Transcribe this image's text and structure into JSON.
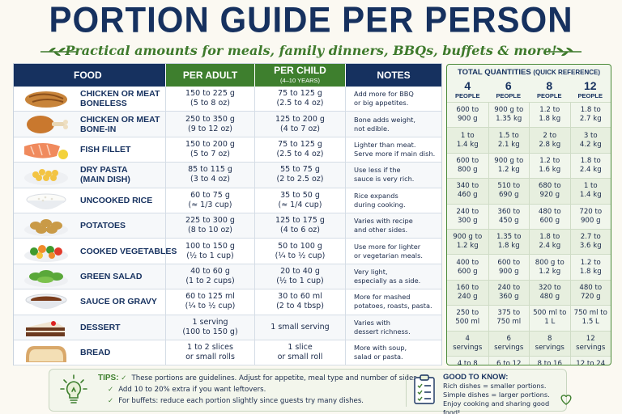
{
  "title": "PORTION GUIDE PER PERSON",
  "subtitle": "Practical amounts for meals, family dinners, BBQs, buffets & more!",
  "table": {
    "headers": {
      "food": "FOOD",
      "adult": "PER ADULT",
      "child": "PER CHILD",
      "child_sub": "(4–10 YEARS)",
      "notes": "NOTES"
    },
    "rows": [
      {
        "icon": "chicken-breast-icon",
        "name": [
          "CHICKEN OR MEAT",
          "BONELESS"
        ],
        "adult": [
          "150 to 225 g",
          "(5 to 8 oz)"
        ],
        "child": [
          "75 to 125 g",
          "(2.5 to 4 oz)"
        ],
        "notes": [
          "Add more for BBQ",
          "or big appetites."
        ]
      },
      {
        "icon": "drumstick-icon",
        "name": [
          "CHICKEN OR MEAT",
          "BONE-IN"
        ],
        "adult": [
          "250 to 350 g",
          "(9 to 12 oz)"
        ],
        "child": [
          "125 to 200 g",
          "(4 to 7 oz)"
        ],
        "notes": [
          "Bone adds weight,",
          "not edible."
        ]
      },
      {
        "icon": "fish-fillet-icon",
        "name": [
          "FISH FILLET"
        ],
        "adult": [
          "150 to 200 g",
          "(5 to 7 oz)"
        ],
        "child": [
          "75 to 125 g",
          "(2.5 to 4 oz)"
        ],
        "notes": [
          "Lighter than meat.",
          "Serve more if main dish."
        ]
      },
      {
        "icon": "pasta-icon",
        "name": [
          "DRY PASTA",
          "(MAIN DISH)"
        ],
        "adult": [
          "85 to 115 g",
          "(3 to 4 oz)"
        ],
        "child": [
          "55 to 75 g",
          "(2 to 2.5 oz)"
        ],
        "notes": [
          "Use less if the",
          "sauce is very rich."
        ]
      },
      {
        "icon": "rice-bowl-icon",
        "name": [
          "UNCOOKED RICE"
        ],
        "adult": [
          "60 to 75 g",
          "(≈ 1/3 cup)"
        ],
        "child": [
          "35 to 50 g",
          "(≈ 1/4 cup)"
        ],
        "notes": [
          "Rice expands",
          "during cooking."
        ]
      },
      {
        "icon": "potatoes-icon",
        "name": [
          "POTATOES"
        ],
        "adult": [
          "225 to 300 g",
          "(8 to 10 oz)"
        ],
        "child": [
          "125 to 175 g",
          "(4 to 6 oz)"
        ],
        "notes": [
          "Varies with recipe",
          "and other sides."
        ]
      },
      {
        "icon": "vegetables-icon",
        "name": [
          "COOKED VEGETABLES"
        ],
        "adult": [
          "100 to 150 g",
          "(½ to 1 cup)"
        ],
        "child": [
          "50 to 100 g",
          "(¼ to ½ cup)"
        ],
        "notes": [
          "Use more for lighter",
          "or vegetarian meals."
        ]
      },
      {
        "icon": "salad-icon",
        "name": [
          "GREEN SALAD"
        ],
        "adult": [
          "40 to 60 g",
          "(1 to 2 cups)"
        ],
        "child": [
          "20 to 40 g",
          "(½ to 1 cup)"
        ],
        "notes": [
          "Very light,",
          "especially as a side."
        ]
      },
      {
        "icon": "gravy-bowl-icon",
        "name": [
          "SAUCE OR GRAVY"
        ],
        "adult": [
          "60 to 125 ml",
          "(¼ to ½ cup)"
        ],
        "child": [
          "30 to 60 ml",
          "(2 to 4 tbsp)"
        ],
        "notes": [
          "More for mashed",
          "potatoes, roasts, pasta."
        ]
      },
      {
        "icon": "cake-slice-icon",
        "name": [
          "DESSERT"
        ],
        "adult": [
          "1 serving",
          "(100 to 150 g)"
        ],
        "child": [
          "1 small serving"
        ],
        "notes": [
          "Varies with",
          "dessert richness."
        ]
      },
      {
        "icon": "bread-icon",
        "name": [
          "BREAD"
        ],
        "adult": [
          "1 to 2 slices",
          "or small rolls"
        ],
        "child": [
          "1 slice",
          "or small roll"
        ],
        "notes": [
          "More with soup,",
          "salad or pasta."
        ]
      }
    ]
  },
  "totals": {
    "title": "TOTAL QUANTITIES",
    "title_note": "(QUICK REFERENCE)",
    "people_label": "PEOPLE",
    "columns": [
      "4",
      "6",
      "8",
      "12"
    ],
    "rows": [
      [
        [
          "600 to",
          "900 g"
        ],
        [
          "900 g to",
          "1.35 kg"
        ],
        [
          "1.2 to",
          "1.8 kg"
        ],
        [
          "1.8 to",
          "2.7 kg"
        ]
      ],
      [
        [
          "1 to",
          "1.4 kg"
        ],
        [
          "1.5 to",
          "2.1 kg"
        ],
        [
          "2 to",
          "2.8 kg"
        ],
        [
          "3 to",
          "4.2 kg"
        ]
      ],
      [
        [
          "600 to",
          "800 g"
        ],
        [
          "900 g to",
          "1.2 kg"
        ],
        [
          "1.2 to",
          "1.6 kg"
        ],
        [
          "1.8 to",
          "2.4 kg"
        ]
      ],
      [
        [
          "340 to",
          "460 g"
        ],
        [
          "510 to",
          "690 g"
        ],
        [
          "680 to",
          "920 g"
        ],
        [
          "1 to",
          "1.4 kg"
        ]
      ],
      [
        [
          "240 to",
          "300 g"
        ],
        [
          "360 to",
          "450 g"
        ],
        [
          "480 to",
          "600 g"
        ],
        [
          "720 to",
          "900 g"
        ]
      ],
      [
        [
          "900 g to",
          "1.2 kg"
        ],
        [
          "1.35 to",
          "1.8 kg"
        ],
        [
          "1.8 to",
          "2.4 kg"
        ],
        [
          "2.7 to",
          "3.6 kg"
        ]
      ],
      [
        [
          "400 to",
          "600 g"
        ],
        [
          "600 to",
          "900 g"
        ],
        [
          "800 g to",
          "1.2 kg"
        ],
        [
          "1.2 to",
          "1.8 kg"
        ]
      ],
      [
        [
          "160 to",
          "240 g"
        ],
        [
          "240 to",
          "360 g"
        ],
        [
          "320 to",
          "480 g"
        ],
        [
          "480 to",
          "720 g"
        ]
      ],
      [
        [
          "250 to",
          "500 ml"
        ],
        [
          "375 to",
          "750 ml"
        ],
        [
          "500 ml to",
          "1 L"
        ],
        [
          "750 ml to",
          "1.5 L"
        ]
      ],
      [
        [
          "4",
          "servings"
        ],
        [
          "6",
          "servings"
        ],
        [
          "8",
          "servings"
        ],
        [
          "12",
          "servings"
        ]
      ],
      [
        [
          "4 to 8",
          "slices/rolls"
        ],
        [
          "6 to 12",
          "slices/rolls"
        ],
        [
          "8 to 16",
          "slices/rolls"
        ],
        [
          "12 to 24",
          "slices/rolls"
        ]
      ]
    ]
  },
  "tips": {
    "label": "TIPS:",
    "lines": [
      "These portions are guidelines. Adjust for appetite, meal type and number of sides.",
      "Add 10 to 20% extra if you want leftovers.",
      "For buffets: reduce each portion slightly since guests try many dishes."
    ]
  },
  "good_to_know": {
    "title": "GOOD TO KNOW:",
    "lines": [
      "Rich dishes = smaller portions.",
      "Simple dishes = larger portions.",
      "Enjoy cooking and sharing good food!"
    ]
  },
  "colors": {
    "navy": "#16315f",
    "green": "#3e7f2e",
    "panel": "#f1f6ec"
  }
}
